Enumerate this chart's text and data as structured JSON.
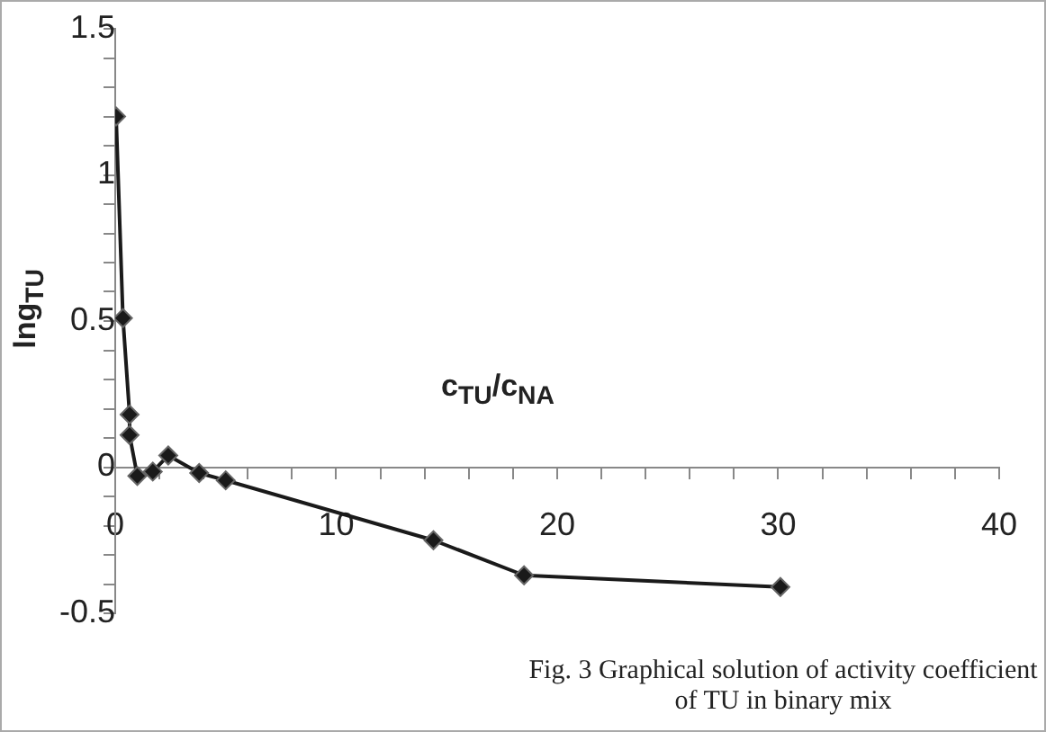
{
  "chart_data": {
    "type": "line",
    "xlabel": "c$_{TU}$/c$_{NA}$",
    "ylabel": "lng$_{TU}$",
    "annotations": [
      "Fig. 3 Graphical solution of activity coefficient of TU in binary mix"
    ],
    "series": [
      {
        "color": "#1a1a1a",
        "x": [
          0.04,
          0.35,
          0.65,
          0.65,
          1.0,
          1.7,
          2.4,
          3.8,
          5.0,
          14.4,
          18.5,
          30.1
        ],
        "values": [
          1.2,
          0.51,
          0.18,
          0.11,
          -0.03,
          -0.015,
          0.04,
          -0.02,
          -0.045,
          -0.25,
          -0.37,
          -0.41
        ]
      }
    ],
    "xlim": [
      0,
      40
    ],
    "ylim": [
      -0.5,
      1.5
    ],
    "xticks": [
      0,
      {
        "value": 2,
        "label": null
      },
      {
        "value": 4,
        "label": null
      },
      {
        "value": 6,
        "label": null
      },
      {
        "value": 8,
        "label": null
      },
      10,
      {
        "value": 12,
        "label": null
      },
      {
        "value": 14,
        "label": null
      },
      {
        "value": 16,
        "label": null
      },
      {
        "value": 18,
        "label": null
      },
      20,
      {
        "value": 22,
        "label": null
      },
      {
        "value": 24,
        "label": null
      },
      {
        "value": 26,
        "label": null
      },
      {
        "value": 28,
        "label": null
      },
      30,
      {
        "value": 32,
        "label": null
      },
      {
        "value": 34,
        "label": null
      },
      {
        "value": 36,
        "label": null
      },
      {
        "value": 38,
        "label": null
      },
      40
    ],
    "yticks": [
      -0.5,
      {
        "value": -0.4,
        "label": null
      },
      {
        "value": -0.3,
        "label": null
      },
      {
        "value": -0.2,
        "label": null
      },
      {
        "value": -0.1,
        "label": null
      },
      0,
      {
        "value": 0.1,
        "label": null
      },
      {
        "value": 0.2,
        "label": null
      },
      {
        "value": 0.3,
        "label": null
      },
      {
        "value": 0.4,
        "label": null
      },
      0.5,
      {
        "value": 0.6,
        "label": null
      },
      {
        "value": 0.7,
        "label": null
      },
      {
        "value": 0.8,
        "label": null
      },
      {
        "value": 0.9,
        "label": null
      },
      1,
      {
        "value": 1.1,
        "label": null
      },
      {
        "value": 1.2,
        "label": null
      },
      {
        "value": 1.3,
        "label": null
      },
      {
        "value": 1.4,
        "label": null
      },
      1.5
    ],
    "grid": false,
    "legend": false,
    "marker": "diamond",
    "line_style": "solid"
  }
}
